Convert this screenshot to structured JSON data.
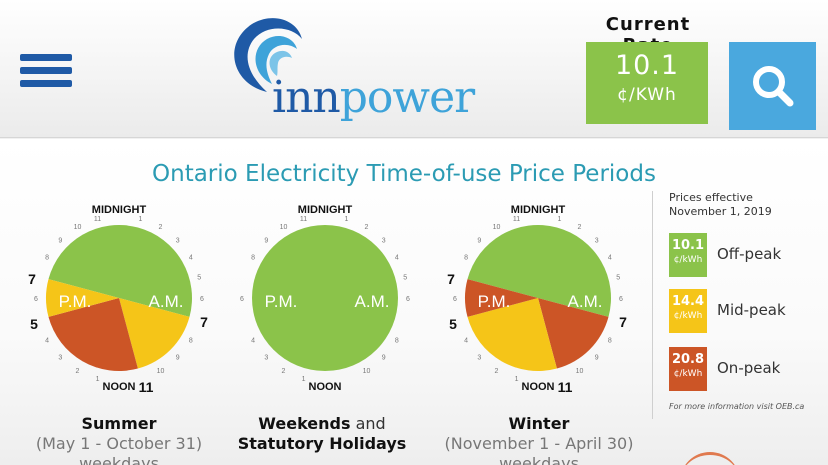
{
  "header": {
    "menu_icon": "hamburger-menu-icon",
    "logo": {
      "text_part1": "inn",
      "text_part2": "power",
      "arc_color": "#1f5aa6",
      "arc_color_light": "#3ea3d9"
    },
    "current_rate": {
      "label": "Current Rate",
      "value": "10.1",
      "unit": "¢/KWh",
      "color": "#8bc34a"
    },
    "search_icon": "search-icon",
    "search_color": "#4aa8de"
  },
  "infographic": {
    "title": "Ontario Electricity Time-of-use Price Periods",
    "colors": {
      "off_peak": "#8bc34a",
      "mid_peak": "#f5c518",
      "on_peak": "#cc5526"
    },
    "clocks": [
      {
        "id": "summer",
        "top_label": "MIDNIGHT",
        "bottom_label": "NOON",
        "left_hour_top": "7",
        "left_hour_bottom": "5",
        "right_hour": "7",
        "bottom_right_hour": "11",
        "pm_label": "P.M.",
        "am_label": "A.M.",
        "segments": [
          {
            "period": "off_peak",
            "from": 19,
            "to": 7
          },
          {
            "period": "mid_peak",
            "from": 7,
            "to": 11
          },
          {
            "period": "on_peak",
            "from": 11,
            "to": 17
          },
          {
            "period": "mid_peak",
            "from": 17,
            "to": 19
          }
        ],
        "caption_strong": "Summer",
        "caption_normal": "",
        "caption_line2": "(May 1 - October 31)",
        "caption_line3": "weekdays"
      },
      {
        "id": "weekends",
        "top_label": "MIDNIGHT",
        "bottom_label": "NOON",
        "pm_label": "P.M.",
        "am_label": "A.M.",
        "segments": [
          {
            "period": "off_peak",
            "from": 0,
            "to": 24
          }
        ],
        "caption_strong": "Weekends",
        "caption_normal": " and",
        "caption_line2": "Statutory Holidays",
        "caption_line3": ""
      },
      {
        "id": "winter",
        "top_label": "MIDNIGHT",
        "bottom_label": "NOON",
        "left_hour_top": "7",
        "left_hour_bottom": "5",
        "right_hour": "7",
        "bottom_right_hour": "11",
        "pm_label": "P.M.",
        "am_label": "A.M.",
        "segments": [
          {
            "period": "off_peak",
            "from": 19,
            "to": 7
          },
          {
            "period": "on_peak",
            "from": 7,
            "to": 11
          },
          {
            "period": "mid_peak",
            "from": 11,
            "to": 17
          },
          {
            "period": "on_peak",
            "from": 17,
            "to": 19
          }
        ],
        "caption_strong": "Winter",
        "caption_normal": "",
        "caption_line2": "(November 1 - April 30)",
        "caption_line3": "weekdays"
      }
    ]
  },
  "legend": {
    "heading_line1": "Prices effective",
    "heading_line2": "November 1, 2019",
    "items": [
      {
        "price": "10.1",
        "unit": "¢/kWh",
        "name": "Off-peak",
        "color": "#8bc34a"
      },
      {
        "price": "14.4",
        "unit": "¢/kWh",
        "name": "Mid-peak",
        "color": "#f5c518"
      },
      {
        "price": "20.8",
        "unit": "¢/kWh",
        "name": "On-peak",
        "color": "#cc5526"
      }
    ],
    "footnote": "For more information visit OEB.ca"
  }
}
